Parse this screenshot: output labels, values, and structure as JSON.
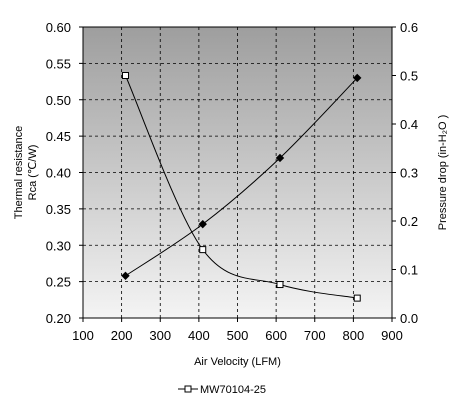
{
  "chart_data": {
    "type": "line",
    "xlabel": "Air Velocity (LFM)",
    "xlim": [
      100,
      900
    ],
    "xticks": [
      100,
      200,
      300,
      400,
      500,
      600,
      700,
      800,
      900
    ],
    "ylabel_left": [
      "Thermal resistance",
      "Rca (℃/W)"
    ],
    "ylim_left": [
      0.2,
      0.6
    ],
    "yticks_left": [
      "0.20",
      "0.25",
      "0.30",
      "0.35",
      "0.40",
      "0.45",
      "0.50",
      "0.55",
      "0.60"
    ],
    "ylabel_right": "Pressure drop  (in-H₂O )",
    "ylim_right": [
      0,
      0.6
    ],
    "yticks_right": [
      "0.0",
      "0.1",
      "0.2",
      "0.3",
      "0.4",
      "0.5",
      "0.6"
    ],
    "grid": true,
    "legend_position": "bottom-center",
    "series": [
      {
        "axis": "left",
        "marker": "diamond-filled",
        "x": [
          210,
          410,
          610,
          810
        ],
        "y": [
          0.258,
          0.329,
          0.42,
          0.53
        ]
      },
      {
        "name": "MW70104-25",
        "axis": "right",
        "marker": "square-open",
        "x": [
          210,
          410,
          610,
          810
        ],
        "y": [
          0.5,
          0.141,
          0.069,
          0.041
        ]
      }
    ],
    "colors": {
      "plot_bg_top": "#9e9e9e",
      "plot_bg_bottom": "#f4f4f4",
      "line": "#000000"
    }
  }
}
